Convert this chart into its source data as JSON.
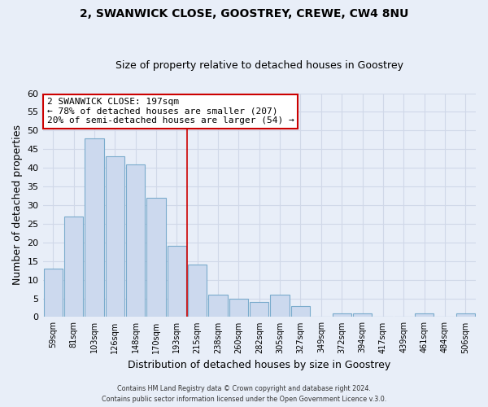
{
  "title": "2, SWANWICK CLOSE, GOOSTREY, CREWE, CW4 8NU",
  "subtitle": "Size of property relative to detached houses in Goostrey",
  "xlabel": "Distribution of detached houses by size in Goostrey",
  "ylabel": "Number of detached properties",
  "bin_labels": [
    "59sqm",
    "81sqm",
    "103sqm",
    "126sqm",
    "148sqm",
    "170sqm",
    "193sqm",
    "215sqm",
    "238sqm",
    "260sqm",
    "282sqm",
    "305sqm",
    "327sqm",
    "349sqm",
    "372sqm",
    "394sqm",
    "417sqm",
    "439sqm",
    "461sqm",
    "484sqm",
    "506sqm"
  ],
  "bar_values": [
    13,
    27,
    48,
    43,
    41,
    32,
    19,
    14,
    6,
    5,
    4,
    6,
    3,
    0,
    1,
    1,
    0,
    0,
    1,
    0,
    1
  ],
  "bar_color": "#ccd9ee",
  "bar_edgecolor": "#7aabcc",
  "vline_x_idx": 6.5,
  "vline_color": "#cc0000",
  "ylim": [
    0,
    60
  ],
  "yticks": [
    0,
    5,
    10,
    15,
    20,
    25,
    30,
    35,
    40,
    45,
    50,
    55,
    60
  ],
  "annotation_line1": "2 SWANWICK CLOSE: 197sqm",
  "annotation_line2": "← 78% of detached houses are smaller (207)",
  "annotation_line3": "20% of semi-detached houses are larger (54) →",
  "annotation_box_edge": "#cc0000",
  "footer_line1": "Contains HM Land Registry data © Crown copyright and database right 2024.",
  "footer_line2": "Contains public sector information licensed under the Open Government Licence v.3.0.",
  "background_color": "#e8eef8",
  "grid_color": "#d0d8e8",
  "title_fontsize": 10,
  "subtitle_fontsize": 9
}
